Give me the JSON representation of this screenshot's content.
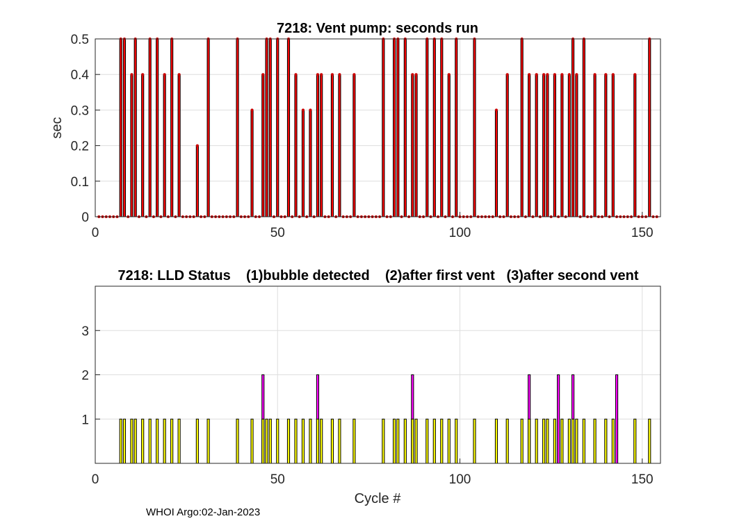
{
  "footer": "WHOI Argo:02-Jan-2023",
  "chart_data": [
    {
      "type": "bar",
      "title": "7218: Vent pump: seconds run",
      "xlabel": "",
      "ylabel": "sec",
      "xlim": [
        0,
        155
      ],
      "ylim": [
        0,
        0.5
      ],
      "xticks": [
        "0",
        "50",
        "100",
        "150"
      ],
      "yticks": [
        "0",
        "0.1",
        "0.2",
        "0.3",
        "0.4",
        "0.5"
      ],
      "grid": true,
      "bar_color": "#ff0000",
      "marker_color": "#cc0000",
      "cycles_with_markers": [
        1,
        154
      ],
      "x": [
        7,
        8,
        10,
        11,
        13,
        15,
        17,
        19,
        21,
        23,
        28,
        31,
        39,
        43,
        46,
        47,
        48,
        50,
        53,
        55,
        57,
        59,
        61,
        62,
        65,
        67,
        71,
        79,
        82,
        83,
        85,
        87,
        88,
        91,
        93,
        95,
        97,
        99,
        104,
        110,
        113,
        117,
        119,
        121,
        123,
        124,
        126,
        128,
        130,
        131,
        132,
        134,
        137,
        140,
        142,
        148,
        152
      ],
      "values": [
        0.5,
        0.5,
        0.4,
        0.5,
        0.4,
        0.5,
        0.5,
        0.4,
        0.5,
        0.4,
        0.2,
        0.5,
        0.5,
        0.3,
        0.4,
        0.5,
        0.5,
        0.5,
        0.5,
        0.4,
        0.3,
        0.3,
        0.4,
        0.4,
        0.4,
        0.4,
        0.4,
        0.5,
        0.5,
        0.5,
        0.5,
        0.4,
        0.4,
        0.5,
        0.5,
        0.5,
        0.4,
        0.5,
        0.5,
        0.3,
        0.4,
        0.5,
        0.4,
        0.4,
        0.4,
        0.4,
        0.4,
        0.4,
        0.4,
        0.5,
        0.4,
        0.5,
        0.4,
        0.4,
        0.4,
        0.4,
        0.5
      ]
    },
    {
      "type": "bar",
      "title": "7218: LLD Status    (1)bubble detected    (2)after first vent   (3)after second vent",
      "xlabel": "Cycle #",
      "ylabel": "",
      "xlim": [
        0,
        155
      ],
      "ylim": [
        0,
        4
      ],
      "xticks": [
        "0",
        "50",
        "100",
        "150"
      ],
      "yticks": [
        "1",
        "2",
        "3"
      ],
      "grid": true,
      "series": [
        {
          "color": "#ffff00",
          "x": [
            7,
            8,
            10,
            11,
            13,
            15,
            17,
            19,
            21,
            23,
            28,
            31,
            39,
            43,
            46,
            47,
            48,
            50,
            53,
            55,
            57,
            59,
            61,
            62,
            65,
            67,
            71,
            79,
            82,
            83,
            85,
            87,
            88,
            91,
            93,
            95,
            97,
            99,
            104,
            110,
            113,
            117,
            119,
            121,
            123,
            124,
            126,
            128,
            130,
            131,
            132,
            134,
            137,
            140,
            142,
            148,
            152
          ],
          "values": [
            1,
            1,
            1,
            1,
            1,
            1,
            1,
            1,
            1,
            1,
            1,
            1,
            1,
            1,
            1,
            1,
            1,
            1,
            1,
            1,
            1,
            1,
            1,
            1,
            1,
            1,
            1,
            1,
            1,
            1,
            1,
            1,
            1,
            1,
            1,
            1,
            1,
            1,
            1,
            1,
            1,
            1,
            1,
            1,
            1,
            1,
            1,
            1,
            1,
            1,
            1,
            1,
            1,
            1,
            1,
            1,
            1
          ]
        },
        {
          "color": "#ff00ff",
          "x": [
            46,
            61,
            87,
            119,
            127,
            131,
            143
          ],
          "values": [
            2,
            2,
            2,
            2,
            2,
            2,
            2
          ]
        }
      ]
    }
  ]
}
